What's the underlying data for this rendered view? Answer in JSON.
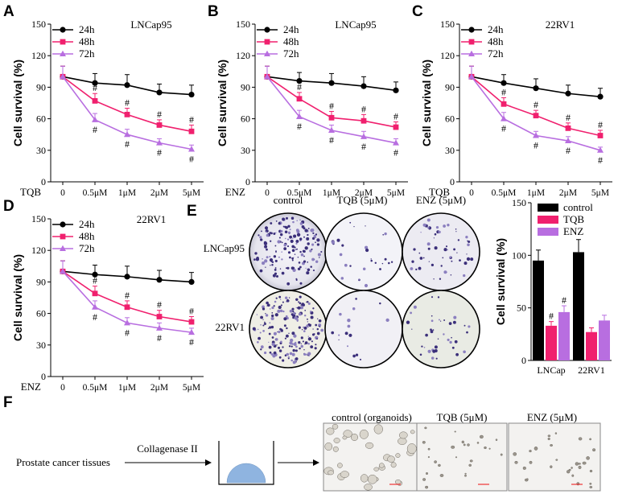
{
  "colors": {
    "h24": "#000000",
    "h48": "#f0206e",
    "h72": "#b86ee0",
    "control": "#000000",
    "tqb": "#f0206e",
    "enz": "#b86ee0"
  },
  "charts": [
    {
      "type": "line",
      "panel": "A",
      "title": "LNCap95",
      "treatment": "TQB",
      "x_labels": [
        "0",
        "0.5μM",
        "1μM",
        "2μM",
        "5μM"
      ],
      "ylabel": "Cell survival (%)",
      "ylim": [
        0,
        150
      ],
      "yticks": [
        "0",
        "30",
        "60",
        "90",
        "120",
        "150"
      ],
      "series": [
        {
          "name": "24h",
          "key": "h24",
          "marker": "circle",
          "values": [
            100,
            94,
            92,
            85,
            83
          ],
          "err": [
            10,
            9,
            10,
            8,
            9
          ],
          "sig": [
            "",
            "",
            "",
            "",
            ""
          ]
        },
        {
          "name": "48h",
          "key": "h48",
          "marker": "square",
          "values": [
            100,
            77,
            64,
            54,
            48
          ],
          "err": [
            10,
            7,
            6,
            5,
            6
          ],
          "sig": [
            "",
            "#",
            "#",
            "#",
            "#"
          ]
        },
        {
          "name": "72h",
          "key": "h72",
          "marker": "triangle",
          "values": [
            100,
            59,
            45,
            37,
            31
          ],
          "err": [
            10,
            6,
            5,
            4,
            4
          ],
          "sig": [
            "",
            "#",
            "#",
            "#",
            "#"
          ]
        }
      ]
    },
    {
      "type": "line",
      "panel": "B",
      "title": "LNCap95",
      "treatment": "ENZ",
      "x_labels": [
        "0",
        "0.5μM",
        "1μM",
        "2μM",
        "5μM"
      ],
      "ylabel": "Cell survival (%)",
      "ylim": [
        0,
        150
      ],
      "yticks": [
        "0",
        "30",
        "60",
        "90",
        "120",
        "150"
      ],
      "series": [
        {
          "name": "24h",
          "key": "h24",
          "marker": "circle",
          "values": [
            100,
            96,
            94,
            91,
            87
          ],
          "err": [
            10,
            8,
            9,
            9,
            8
          ],
          "sig": [
            "",
            "",
            "",
            "",
            ""
          ]
        },
        {
          "name": "48h",
          "key": "h48",
          "marker": "square",
          "values": [
            100,
            79,
            61,
            58,
            52
          ],
          "err": [
            10,
            6,
            6,
            6,
            5
          ],
          "sig": [
            "",
            "#",
            "#",
            "#",
            "#"
          ]
        },
        {
          "name": "72h",
          "key": "h72",
          "marker": "triangle",
          "values": [
            100,
            62,
            49,
            43,
            37
          ],
          "err": [
            10,
            6,
            5,
            5,
            4
          ],
          "sig": [
            "",
            "#",
            "#",
            "#",
            "#"
          ]
        }
      ]
    },
    {
      "type": "line",
      "panel": "C",
      "title": "22RV1",
      "treatment": "TQB",
      "x_labels": [
        "0",
        "0.5μM",
        "1μM",
        "2μM",
        "5μM"
      ],
      "ylabel": "Cell survival (%)",
      "ylim": [
        0,
        150
      ],
      "yticks": [
        "0",
        "30",
        "60",
        "90",
        "120",
        "150"
      ],
      "series": [
        {
          "name": "24h",
          "key": "h24",
          "marker": "circle",
          "values": [
            100,
            94,
            89,
            84,
            81
          ],
          "err": [
            10,
            8,
            9,
            8,
            8
          ],
          "sig": [
            "",
            "",
            "",
            "",
            ""
          ]
        },
        {
          "name": "48h",
          "key": "h48",
          "marker": "square",
          "values": [
            100,
            74,
            63,
            51,
            44
          ],
          "err": [
            10,
            6,
            5,
            5,
            5
          ],
          "sig": [
            "",
            "#",
            "#",
            "#",
            "#"
          ]
        },
        {
          "name": "72h",
          "key": "h72",
          "marker": "triangle",
          "values": [
            100,
            60,
            44,
            39,
            30
          ],
          "err": [
            10,
            6,
            4,
            4,
            3
          ],
          "sig": [
            "",
            "#",
            "#",
            "#",
            "#"
          ]
        }
      ]
    },
    {
      "type": "line",
      "panel": "D",
      "title": "22RV1",
      "treatment": "ENZ",
      "x_labels": [
        "0",
        "0.5μM",
        "1μM",
        "2μM",
        "5μM"
      ],
      "ylabel": "Cell survival (%)",
      "ylim": [
        0,
        150
      ],
      "yticks": [
        "0",
        "30",
        "60",
        "90",
        "120",
        "150"
      ],
      "series": [
        {
          "name": "24h",
          "key": "h24",
          "marker": "circle",
          "values": [
            100,
            97,
            95,
            92,
            90
          ],
          "err": [
            10,
            9,
            10,
            9,
            9
          ],
          "sig": [
            "",
            "",
            "",
            "",
            ""
          ]
        },
        {
          "name": "48h",
          "key": "h48",
          "marker": "square",
          "values": [
            100,
            79,
            66,
            57,
            52
          ],
          "err": [
            10,
            7,
            6,
            6,
            5
          ],
          "sig": [
            "",
            "#",
            "#",
            "#",
            "#"
          ]
        },
        {
          "name": "72h",
          "key": "h72",
          "marker": "triangle",
          "values": [
            100,
            66,
            51,
            46,
            42
          ],
          "err": [
            10,
            6,
            5,
            5,
            4
          ],
          "sig": [
            "",
            "#",
            "#",
            "#",
            "#"
          ]
        }
      ]
    },
    {
      "type": "bar",
      "panel": "E",
      "ylabel": "Cell survival (%)",
      "ylim": [
        0,
        150
      ],
      "yticks": [
        "0",
        "50",
        "100",
        "150"
      ],
      "categories": [
        "LNCap",
        "22RV1"
      ],
      "series": [
        {
          "name": "control",
          "key": "control",
          "values": [
            95,
            103
          ],
          "err": [
            10,
            12
          ],
          "sig": [
            "",
            ""
          ]
        },
        {
          "name": "TQB",
          "key": "tqb",
          "values": [
            33,
            27
          ],
          "err": [
            4,
            4
          ],
          "sig": [
            "#",
            ""
          ]
        },
        {
          "name": "ENZ",
          "key": "enz",
          "values": [
            46,
            38
          ],
          "err": [
            6,
            5
          ],
          "sig": [
            "#",
            ""
          ]
        }
      ]
    }
  ],
  "panel_E": {
    "label": "E",
    "columns": [
      "control",
      "TQB (5μM)",
      "ENZ (5μM)"
    ],
    "rows": [
      "LNCap95",
      "22RV1"
    ]
  },
  "panel_F": {
    "label": "F",
    "source": "Prostate cancer tissues",
    "step": "Collagenase II",
    "images": [
      "control (organoids)",
      "TQB (5μM)",
      "ENZ (5μM)"
    ]
  }
}
